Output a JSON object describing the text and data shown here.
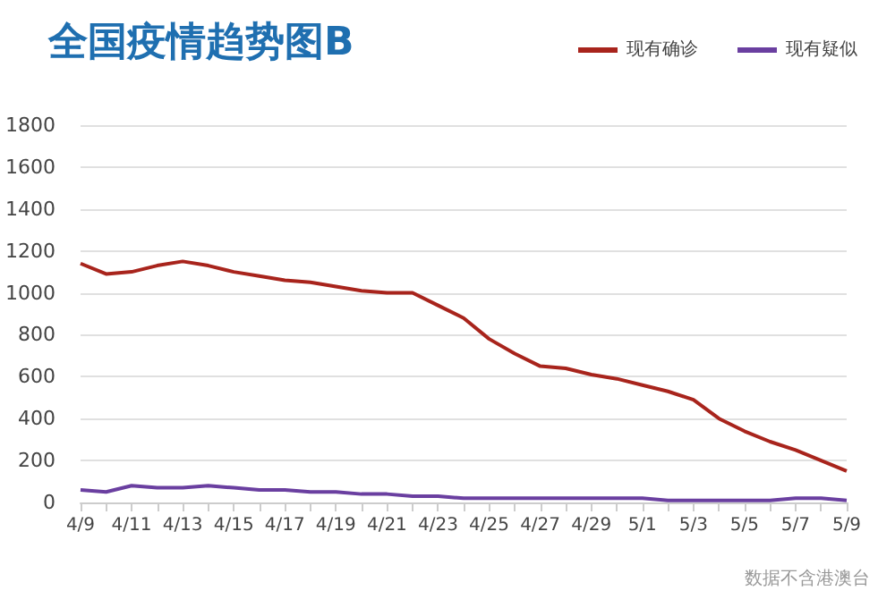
{
  "chart_data": {
    "type": "line",
    "title": "全国疫情趋势图B",
    "categories": [
      "4/9",
      null,
      "4/11",
      null,
      "4/13",
      null,
      "4/15",
      null,
      "4/17",
      null,
      "4/19",
      null,
      "4/21",
      null,
      "4/23",
      null,
      "4/25",
      null,
      "4/27",
      null,
      "4/29",
      null,
      "5/1",
      null,
      "5/3",
      null,
      "5/5",
      null,
      "5/7",
      null,
      "5/9"
    ],
    "series": [
      {
        "name": "现有确诊",
        "color": "#a8241c",
        "values": [
          1140,
          1090,
          1100,
          1130,
          1150,
          1130,
          1100,
          1080,
          1060,
          1050,
          1030,
          1010,
          1000,
          1000,
          940,
          880,
          780,
          710,
          650,
          640,
          610,
          590,
          560,
          530,
          490,
          400,
          340,
          290,
          250,
          200,
          150
        ]
      },
      {
        "name": "现有疑似",
        "color": "#6a3fa0",
        "values": [
          60,
          50,
          80,
          70,
          70,
          80,
          70,
          60,
          60,
          50,
          50,
          40,
          40,
          30,
          30,
          20,
          20,
          20,
          20,
          20,
          20,
          20,
          20,
          10,
          10,
          10,
          10,
          10,
          20,
          20,
          10
        ]
      }
    ],
    "ylim": [
      0,
      1800
    ],
    "yticks": [
      0,
      200,
      400,
      600,
      800,
      1000,
      1200,
      1400,
      1600,
      1800
    ],
    "grid": "y",
    "legend": "top right",
    "marker": "none",
    "line_style": "solid",
    "annotations": [
      "数据不含港澳台"
    ]
  }
}
